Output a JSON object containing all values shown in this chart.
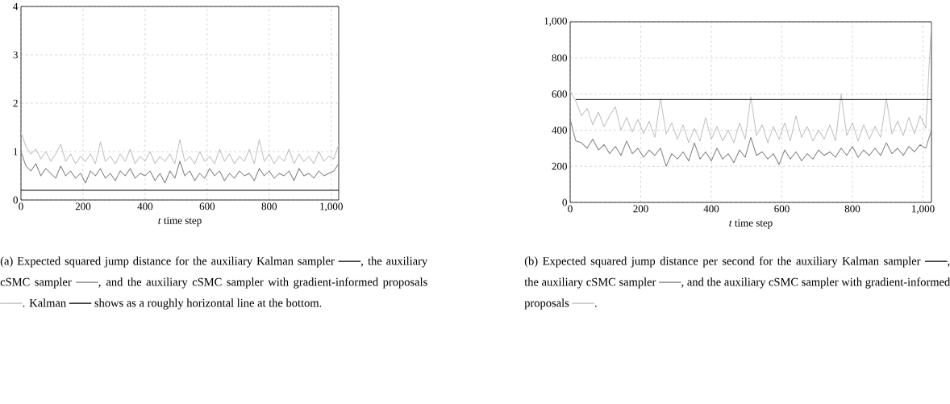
{
  "chart_data": [
    {
      "type": "line",
      "xlabel": "*t* time step",
      "xlim": [
        0,
        1024
      ],
      "ylim": [
        0,
        4
      ],
      "xticks": [
        0,
        200,
        400,
        600,
        800,
        {
          "value": 1000,
          "label": "1,000"
        }
      ],
      "yticks": [
        0,
        1,
        2,
        3,
        4
      ],
      "grid": true,
      "line_style": "solid",
      "x": [
        0,
        16,
        32,
        48,
        64,
        80,
        96,
        112,
        128,
        144,
        160,
        176,
        192,
        208,
        224,
        240,
        256,
        272,
        288,
        304,
        320,
        336,
        352,
        368,
        384,
        400,
        416,
        432,
        448,
        464,
        480,
        496,
        512,
        528,
        544,
        560,
        576,
        592,
        608,
        624,
        640,
        656,
        672,
        688,
        704,
        720,
        736,
        752,
        768,
        784,
        800,
        816,
        832,
        848,
        864,
        880,
        896,
        912,
        928,
        944,
        960,
        976,
        992,
        1008,
        1024
      ],
      "series": [
        {
          "color": "#000000",
          "x": [
            0,
            1024
          ],
          "values": [
            0.2,
            0.2
          ]
        },
        {
          "color": "#7f7f7f",
          "values": [
            1.0,
            0.7,
            0.6,
            0.75,
            0.5,
            0.65,
            0.55,
            0.45,
            0.7,
            0.5,
            0.6,
            0.45,
            0.55,
            0.35,
            0.6,
            0.5,
            0.65,
            0.45,
            0.55,
            0.4,
            0.6,
            0.5,
            0.65,
            0.45,
            0.55,
            0.5,
            0.6,
            0.4,
            0.55,
            0.35,
            0.6,
            0.45,
            0.8,
            0.5,
            0.6,
            0.4,
            0.55,
            0.45,
            0.65,
            0.5,
            0.6,
            0.4,
            0.55,
            0.45,
            0.6,
            0.5,
            0.55,
            0.4,
            0.65,
            0.5,
            0.6,
            0.45,
            0.55,
            0.5,
            0.6,
            0.4,
            0.65,
            0.5,
            0.55,
            0.45,
            0.6,
            0.5,
            0.55,
            0.6,
            0.75
          ]
        },
        {
          "color": "#bfbfbf",
          "values": [
            1.4,
            1.1,
            0.95,
            1.05,
            0.85,
            1.0,
            0.8,
            0.95,
            1.15,
            0.8,
            0.95,
            0.75,
            0.9,
            0.8,
            0.95,
            0.75,
            1.2,
            0.8,
            0.9,
            0.75,
            0.95,
            0.8,
            1.05,
            0.75,
            0.9,
            0.8,
            1.0,
            0.75,
            0.9,
            0.8,
            0.95,
            0.75,
            1.25,
            0.8,
            0.9,
            0.75,
            1.0,
            0.8,
            0.9,
            0.75,
            1.05,
            0.8,
            0.95,
            0.75,
            0.9,
            0.8,
            1.05,
            0.75,
            1.25,
            0.8,
            0.95,
            0.75,
            0.9,
            0.8,
            1.05,
            0.75,
            0.95,
            0.8,
            0.9,
            0.75,
            1.0,
            0.8,
            0.9,
            0.85,
            1.15
          ]
        }
      ],
      "annotations": [
        "(a) Expected squared jump distance for the auxiliary Kalman sampler",
        ", the auxiliary cSMC sampler",
        ", and the auxiliary cSMC sampler with gradient-informed proposals",
        ". Kalman",
        " shows as a roughly horizontal line at the bottom."
      ]
    },
    {
      "type": "line",
      "xlabel": "*t* time step",
      "xlim": [
        0,
        1024
      ],
      "ylim": [
        0,
        1000
      ],
      "xticks": [
        0,
        200,
        400,
        600,
        800,
        {
          "value": 1000,
          "label": "1,000"
        }
      ],
      "yticks": [
        0,
        200,
        400,
        600,
        800,
        {
          "value": 1000,
          "label": "1,000"
        }
      ],
      "grid": true,
      "line_style": "solid",
      "x": [
        0,
        16,
        32,
        48,
        64,
        80,
        96,
        112,
        128,
        144,
        160,
        176,
        192,
        208,
        224,
        240,
        256,
        272,
        288,
        304,
        320,
        336,
        352,
        368,
        384,
        400,
        416,
        432,
        448,
        464,
        480,
        496,
        512,
        528,
        544,
        560,
        576,
        592,
        608,
        624,
        640,
        656,
        672,
        688,
        704,
        720,
        736,
        752,
        768,
        784,
        800,
        816,
        832,
        848,
        864,
        880,
        896,
        912,
        928,
        944,
        960,
        976,
        992,
        1008,
        1024
      ],
      "series": [
        {
          "color": "#000000",
          "x": [
            16,
            1024
          ],
          "values": [
            570,
            570
          ]
        },
        {
          "color": "#7f7f7f",
          "values": [
            460,
            340,
            330,
            300,
            350,
            290,
            320,
            270,
            310,
            260,
            340,
            270,
            300,
            250,
            290,
            260,
            300,
            200,
            270,
            240,
            280,
            230,
            330,
            240,
            280,
            230,
            300,
            240,
            270,
            220,
            290,
            250,
            360,
            260,
            280,
            240,
            270,
            210,
            290,
            240,
            280,
            230,
            270,
            240,
            290,
            260,
            280,
            250,
            300,
            260,
            310,
            250,
            290,
            260,
            300,
            260,
            330,
            270,
            300,
            260,
            310,
            280,
            320,
            300,
            400
          ]
        },
        {
          "color": "#bfbfbf",
          "values": [
            620,
            560,
            480,
            520,
            430,
            500,
            420,
            480,
            530,
            400,
            470,
            390,
            460,
            380,
            450,
            360,
            575,
            380,
            440,
            350,
            430,
            330,
            410,
            340,
            470,
            350,
            420,
            340,
            400,
            330,
            440,
            350,
            585,
            370,
            430,
            330,
            420,
            350,
            440,
            340,
            480,
            360,
            420,
            340,
            400,
            350,
            430,
            340,
            600,
            370,
            440,
            340,
            430,
            350,
            420,
            360,
            575,
            380,
            450,
            370,
            470,
            380,
            480,
            410,
            1000
          ]
        }
      ],
      "annotations": [
        "(b) Expected squared jump distance per second for the auxiliary Kalman sampler",
        ", the auxiliary cSMC sampler",
        ", and the auxiliary cSMC sampler with gradient-informed proposals",
        "."
      ]
    }
  ]
}
